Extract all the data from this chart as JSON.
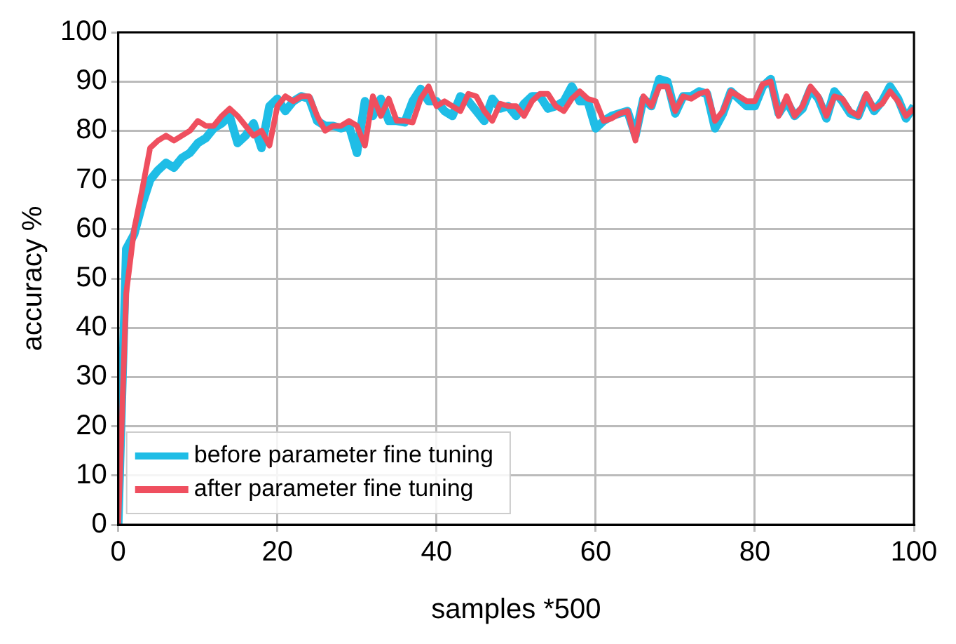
{
  "chart_data": {
    "type": "line",
    "xlabel": "samples *500",
    "ylabel": "accuracy %",
    "x": [
      0,
      1,
      2,
      3,
      4,
      5,
      6,
      7,
      8,
      9,
      10,
      11,
      12,
      13,
      14,
      15,
      16,
      17,
      18,
      19,
      20,
      21,
      22,
      23,
      24,
      25,
      26,
      27,
      28,
      29,
      30,
      31,
      32,
      33,
      34,
      35,
      36,
      37,
      38,
      39,
      40,
      41,
      42,
      43,
      44,
      45,
      46,
      47,
      48,
      49,
      50,
      51,
      52,
      53,
      54,
      55,
      56,
      57,
      58,
      59,
      60,
      61,
      62,
      63,
      64,
      65,
      66,
      67,
      68,
      69,
      70,
      71,
      72,
      73,
      74,
      75,
      76,
      77,
      78,
      79,
      80,
      81,
      82,
      83,
      84,
      85,
      86,
      87,
      88,
      89,
      90,
      91,
      92,
      93,
      94,
      95,
      96,
      97,
      98,
      99,
      100
    ],
    "series": [
      {
        "name": "before parameter fine tuning",
        "color": "#1fbde6",
        "values": [
          0,
          56,
          59,
          65,
          70,
          72,
          73.5,
          72.5,
          74.5,
          75.5,
          77.5,
          78.5,
          80.5,
          81.5,
          83,
          77.5,
          79,
          81.5,
          76.5,
          85,
          86.5,
          84,
          86,
          87,
          86.5,
          82,
          81,
          81,
          80.5,
          81,
          75.5,
          86,
          83,
          86.5,
          82,
          82,
          81.7,
          86,
          88.5,
          86,
          86,
          84,
          83,
          87,
          86,
          84,
          82,
          86.5,
          84.5,
          85,
          83,
          85.5,
          87,
          87,
          84.5,
          85,
          86,
          89,
          86,
          86,
          80.5,
          82,
          83,
          83.5,
          84,
          79,
          86.5,
          85,
          90.5,
          90,
          83.5,
          87,
          87,
          88,
          87.5,
          80.5,
          83.5,
          88,
          86.5,
          85,
          85,
          89,
          90.5,
          83.5,
          86,
          83,
          84.5,
          88.5,
          86.5,
          82.5,
          88,
          86,
          83.5,
          83,
          87,
          84,
          86,
          89,
          86.5,
          82.5,
          85
        ]
      },
      {
        "name": "after parameter fine tuning",
        "color": "#ef4f5f",
        "values": [
          0,
          47,
          60,
          68,
          76.5,
          78,
          79,
          78,
          79,
          80,
          82,
          81,
          81,
          83,
          84.5,
          83,
          81,
          79,
          80,
          77,
          85,
          87,
          86,
          87,
          87,
          83,
          80,
          81,
          81,
          82,
          81,
          77,
          87,
          83,
          86.5,
          82,
          82,
          81.7,
          86.5,
          89,
          85,
          86,
          85,
          84,
          87.5,
          87,
          84,
          82,
          85.5,
          85,
          85,
          83,
          86,
          87.5,
          87.5,
          85,
          84,
          86.5,
          88,
          86.5,
          86,
          82,
          82.5,
          83.5,
          84,
          78,
          87,
          85,
          89,
          89,
          84,
          87,
          86.5,
          87.5,
          88,
          82,
          84,
          88,
          87,
          86,
          86,
          89.5,
          90,
          83,
          87,
          83,
          85,
          89,
          87,
          83,
          87,
          86.5,
          84,
          83,
          87.5,
          84.5,
          85.5,
          88,
          86,
          83,
          84.5
        ]
      }
    ],
    "xlim": [
      0,
      100
    ],
    "xticks": [
      0,
      20,
      40,
      60,
      80,
      100
    ],
    "ylim": [
      0,
      100
    ],
    "yticks": [
      0,
      10,
      20,
      30,
      40,
      50,
      60,
      70,
      80,
      90,
      100
    ],
    "grid": true,
    "legend": "bottom left",
    "marker": "none",
    "line_style": "solid"
  }
}
